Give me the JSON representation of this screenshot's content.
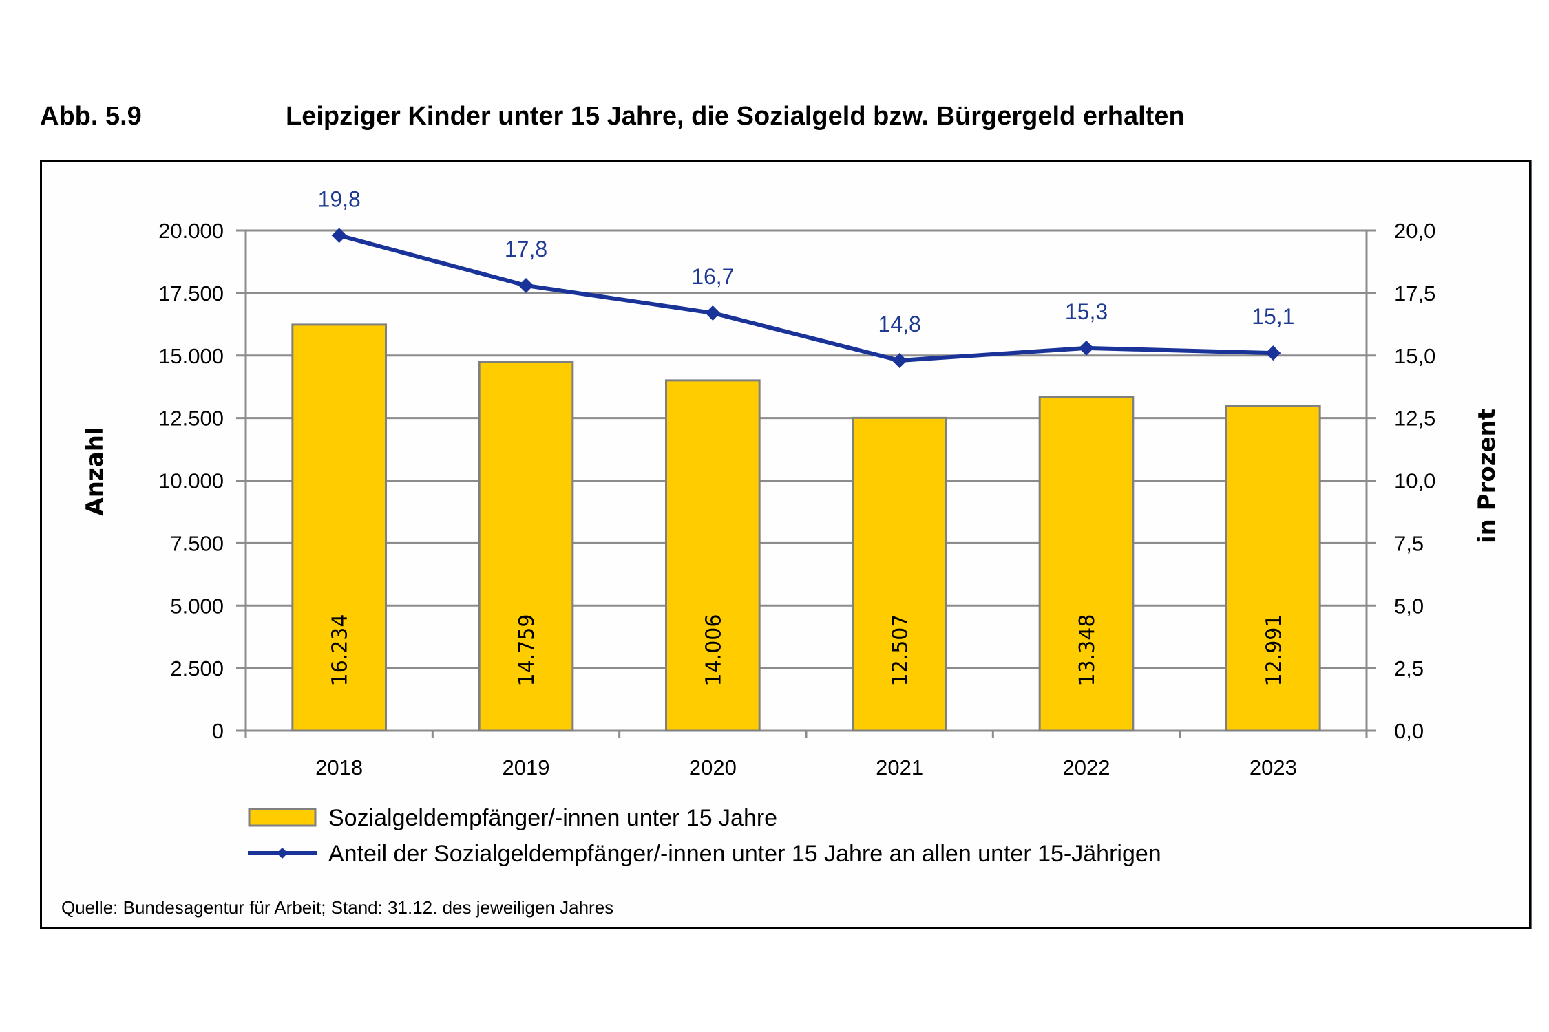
{
  "header": {
    "figure_number": "Abb. 5.9",
    "title": "Leipziger Kinder unter 15 Jahre, die Sozialgeld bzw. Bürgergeld erhalten"
  },
  "source": "Quelle: Bundesagentur für Arbeit; Stand: 31.12. des jeweiligen Jahres",
  "colors": {
    "bar_fill": "#ffcc00",
    "bar_stroke": "#808080",
    "line": "#1a3399",
    "line_label": "#1f3a93",
    "grid": "#8c8c8c"
  },
  "chart_data": {
    "type": "bar",
    "title": "Leipziger Kinder unter 15 Jahre, die Sozialgeld bzw. Bürgergeld erhalten",
    "categories": [
      "2018",
      "2019",
      "2020",
      "2021",
      "2022",
      "2023"
    ],
    "xlabel": "",
    "ylabel": "Anzahl",
    "ylabel_right": "in Prozent",
    "ylim": [
      0,
      20000
    ],
    "ylim_right": [
      0,
      20
    ],
    "yticks": [
      "0",
      "2.500",
      "5.000",
      "7.500",
      "10.000",
      "12.500",
      "15.000",
      "17.500",
      "20.000"
    ],
    "yticks_right": [
      "0,0",
      "2,5",
      "5,0",
      "7,5",
      "10,0",
      "12,5",
      "15,0",
      "17,5",
      "20,0"
    ],
    "grid": true,
    "legend_position": "bottom",
    "series": [
      {
        "name": "Sozialgeldempfänger/-innen unter 15 Jahre",
        "type": "bar",
        "axis": "left",
        "values": [
          16234,
          14759,
          14006,
          12507,
          13348,
          12991
        ],
        "labels": [
          "16.234",
          "14.759",
          "14.006",
          "12.507",
          "13.348",
          "12.991"
        ]
      },
      {
        "name": "Anteil der Sozialgeldempfänger/-innen unter 15 Jahre an allen unter 15-Jährigen",
        "type": "line",
        "axis": "right",
        "values": [
          19.8,
          17.8,
          16.7,
          14.8,
          15.3,
          15.1
        ],
        "labels": [
          "19,8",
          "17,8",
          "16,7",
          "14,8",
          "15,3",
          "15,1"
        ]
      }
    ]
  }
}
